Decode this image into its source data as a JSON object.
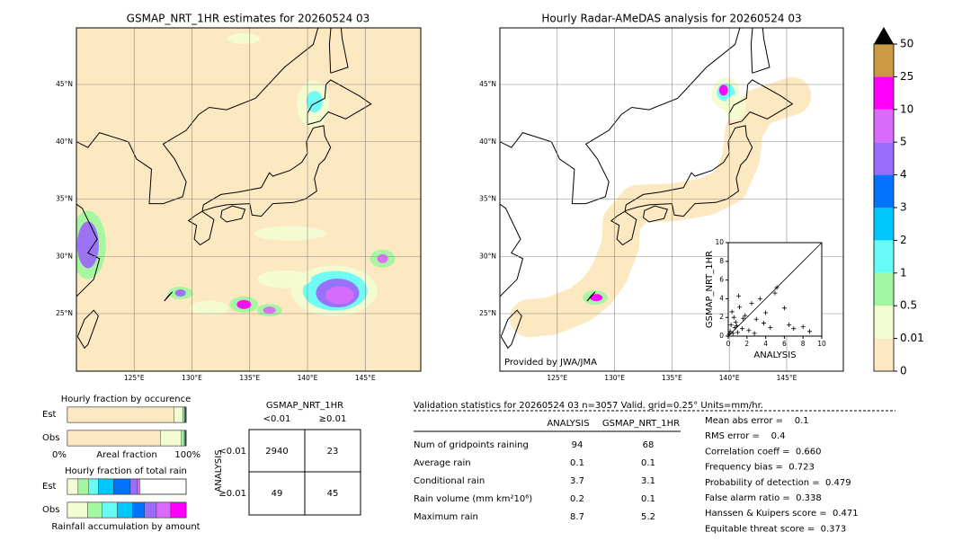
{
  "map_left": {
    "title": "GSMAP_NRT_1HR estimates for 20260524 03",
    "lat_labels": [
      "45°N",
      "40°N",
      "35°N",
      "30°N",
      "25°N"
    ],
    "lon_labels": [
      "125°E",
      "130°E",
      "135°E",
      "140°E",
      "145°E"
    ]
  },
  "map_right": {
    "title": "Hourly Radar-AMeDAS analysis for 20260524 03",
    "lat_labels": [
      "45°N",
      "40°N",
      "35°N",
      "30°N",
      "25°N"
    ],
    "lon_labels": [
      "125°E",
      "130°E",
      "135°E",
      "140°E",
      "145°E"
    ],
    "credit": "Provided by JWA/JMA"
  },
  "inset": {
    "type": "scatter",
    "xlabel": "ANALYSIS",
    "ylabel": "GSMAP_NRT_1HR",
    "xlim": [
      0,
      10
    ],
    "ylim": [
      0,
      10
    ],
    "xticks": [
      0,
      2,
      4,
      6,
      8,
      10
    ],
    "yticks": [
      0,
      2,
      4,
      6,
      8,
      10
    ],
    "x": [
      0.1,
      0.2,
      0.3,
      0.5,
      0.6,
      0.8,
      1.0,
      1.2,
      1.5,
      0.4,
      0.9,
      1.8,
      2.2,
      2.5,
      3.0,
      3.4,
      4.0,
      4.5,
      5.2,
      6.0,
      6.5,
      7.0,
      8.0,
      8.7,
      1.1,
      2.8,
      3.8,
      0.7,
      1.6,
      5.0
    ],
    "y": [
      0.2,
      0.5,
      1.2,
      0.3,
      2.0,
      1.5,
      0.4,
      3.1,
      0.8,
      2.6,
      1.1,
      2.2,
      0.6,
      3.5,
      1.8,
      4.0,
      2.5,
      0.9,
      5.2,
      3.0,
      1.2,
      0.8,
      1.0,
      0.5,
      4.3,
      0.3,
      1.4,
      0.9,
      1.9,
      4.6
    ]
  },
  "colorbar": {
    "levels": [
      0,
      0.01,
      0.5,
      1,
      2,
      3,
      4,
      5,
      10,
      25,
      50
    ],
    "colors": [
      "#fde9c1",
      "#f3fcd2",
      "#a3f7a0",
      "#66fcf5",
      "#00c7fb",
      "#0072fb",
      "#9a6cf9",
      "#d96bf8",
      "#fc00fa",
      "#cc9a42"
    ],
    "over_color": "#000000"
  },
  "fraction_occurrence": {
    "title": "Hourly fraction by occurence",
    "rows": [
      "Est",
      "Obs"
    ],
    "xlabels": [
      "0%",
      "Areal fraction",
      "100%"
    ],
    "series": [
      [
        89.9,
        7.2,
        1.5,
        0.6,
        0.4,
        0.2,
        0.1,
        0.1,
        0,
        0
      ],
      [
        78.3,
        17.8,
        2.4,
        0.7,
        0.4,
        0.2,
        0.1,
        0.1,
        0,
        0
      ]
    ]
  },
  "fraction_rain": {
    "title": "Hourly fraction of total rain",
    "rows": [
      "Est",
      "Obs"
    ],
    "xlabel": "Rainfall accumulation by amount",
    "series": [
      [
        0,
        9,
        9,
        8,
        13,
        14,
        6,
        2,
        0,
        0
      ],
      [
        0,
        17,
        12,
        13,
        13,
        10,
        10,
        12,
        13,
        0
      ]
    ]
  },
  "contingency": {
    "title": "GSMAP_NRT_1HR",
    "cols": [
      "<0.01",
      "≥0.01"
    ],
    "row_title": "ANALYSIS",
    "rows": [
      "<0.01",
      "≥0.01"
    ],
    "cells": [
      [
        2940,
        23
      ],
      [
        49,
        45
      ]
    ]
  },
  "validation": {
    "title": "Validation statistics for 20260524 03  n=3057 Valid. grid=0.25° Units=mm/hr.",
    "cols": [
      "ANALYSIS",
      "GSMAP_NRT_1HR"
    ],
    "rows": [
      {
        "name": "Num of gridpoints raining",
        "a": "94",
        "g": "68"
      },
      {
        "name": "Average rain",
        "a": "0.1",
        "g": "0.1"
      },
      {
        "name": "Conditional rain",
        "a": "3.7",
        "g": "3.1"
      },
      {
        "name": "Rain volume (mm km²10⁶)",
        "a": "0.2",
        "g": "0.1"
      },
      {
        "name": "Maximum rain",
        "a": "8.7",
        "g": "5.2"
      }
    ],
    "scores": [
      "Mean abs error =    0.1",
      "RMS error =    0.4",
      "Correlation coeff =  0.660",
      "Frequency bias =  0.723",
      "Probability of detection =  0.479",
      "False alarm ratio =  0.338",
      "Hanssen & Kuipers score =  0.471",
      "Equitable threat score =  0.373"
    ]
  }
}
